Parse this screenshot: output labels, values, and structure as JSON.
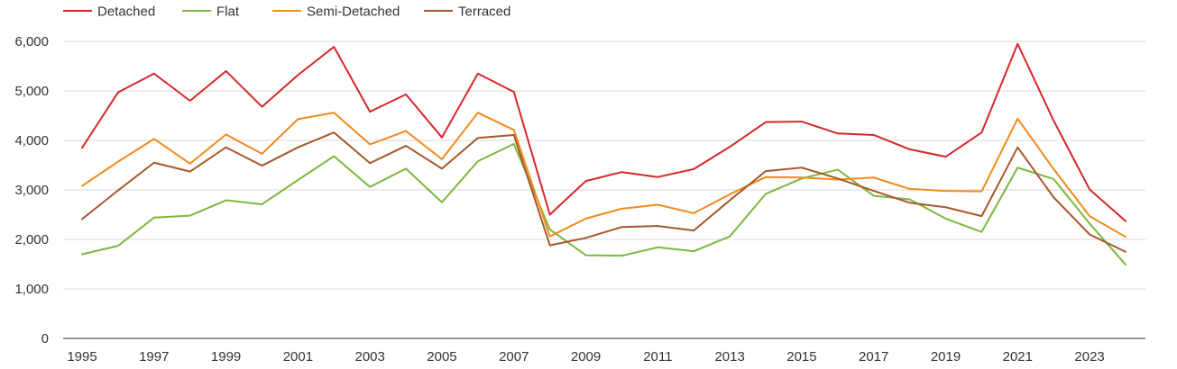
{
  "chart_data": {
    "type": "line",
    "title": "",
    "xlabel": "",
    "ylabel": "",
    "x": [
      1995,
      1996,
      1997,
      1998,
      1999,
      2000,
      2001,
      2002,
      2003,
      2004,
      2005,
      2006,
      2007,
      2008,
      2009,
      2010,
      2011,
      2012,
      2013,
      2014,
      2015,
      2016,
      2017,
      2018,
      2019,
      2020,
      2021,
      2022,
      2023,
      2024
    ],
    "x_tick_labels": [
      "1995",
      "1997",
      "1999",
      "2001",
      "2003",
      "2005",
      "2007",
      "2009",
      "2011",
      "2013",
      "2015",
      "2017",
      "2019",
      "2021",
      "2023"
    ],
    "y_tick_labels": [
      "0",
      "1,000",
      "2,000",
      "3,000",
      "4,000",
      "5,000",
      "6,000"
    ],
    "xlim": [
      1995,
      2024
    ],
    "ylim": [
      0,
      6000
    ],
    "grid": "horizontal",
    "legend_position": "top-left",
    "series": [
      {
        "name": "Detached",
        "color": "#d62728",
        "values": [
          3850,
          4970,
          5350,
          4800,
          5400,
          4680,
          5320,
          5890,
          4580,
          4930,
          4060,
          5350,
          4980,
          2500,
          3180,
          3360,
          3260,
          3420,
          3870,
          4370,
          4380,
          4140,
          4110,
          3820,
          3670,
          4160,
          5950,
          4400,
          3010,
          2370
        ]
      },
      {
        "name": "Flat",
        "color": "#7cb840",
        "values": [
          1700,
          1870,
          2440,
          2480,
          2790,
          2710,
          3200,
          3680,
          3060,
          3430,
          2750,
          3580,
          3930,
          2200,
          1680,
          1670,
          1840,
          1760,
          2060,
          2920,
          3230,
          3410,
          2880,
          2810,
          2420,
          2150,
          3450,
          3220,
          2320,
          1490
        ]
      },
      {
        "name": "Semi-Detached",
        "color": "#f28a1c",
        "values": [
          3080,
          3570,
          4030,
          3530,
          4120,
          3730,
          4430,
          4560,
          3920,
          4190,
          3620,
          4560,
          4210,
          2060,
          2420,
          2620,
          2700,
          2530,
          2910,
          3260,
          3250,
          3210,
          3250,
          3020,
          2980,
          2970,
          4440,
          3420,
          2470,
          2050
        ]
      },
      {
        "name": "Terraced",
        "color": "#a8582a",
        "values": [
          2410,
          2990,
          3550,
          3370,
          3860,
          3490,
          3860,
          4160,
          3540,
          3890,
          3430,
          4050,
          4110,
          1880,
          2030,
          2250,
          2270,
          2180,
          2790,
          3380,
          3450,
          3230,
          2980,
          2740,
          2650,
          2470,
          3860,
          2850,
          2100,
          1750
        ]
      }
    ]
  }
}
